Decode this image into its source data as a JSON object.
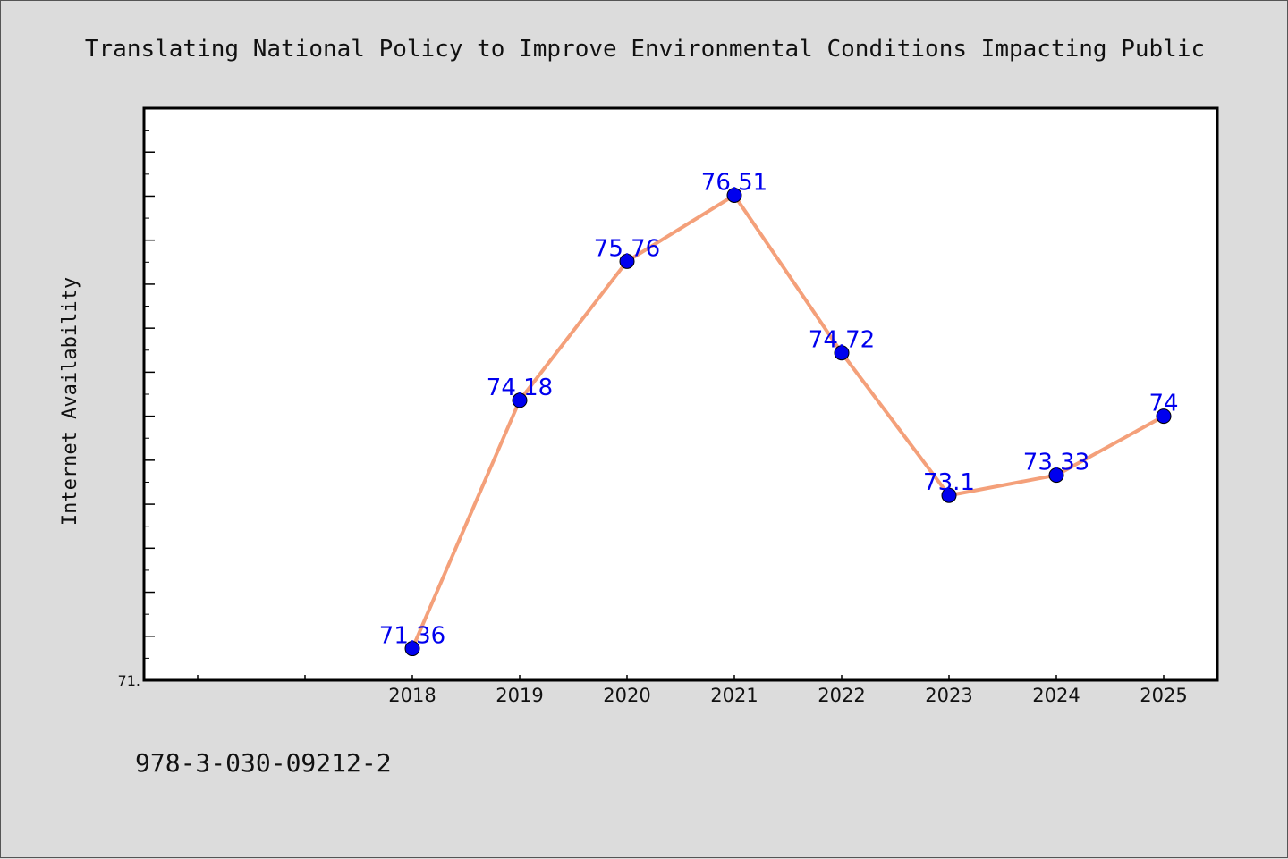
{
  "chart_data": {
    "type": "line",
    "title": "Translating National Policy to Improve Environmental Conditions Impacting Public",
    "xlabel": "",
    "ylabel": "Internet Availability",
    "x_ticks": [
      "2018",
      "2019",
      "2020",
      "2021",
      "2022",
      "2023",
      "2024",
      "2025"
    ],
    "x": [
      2018,
      2019,
      2020,
      2021,
      2022,
      2023,
      2024,
      2025
    ],
    "xlim": [
      2015.5,
      2025.5
    ],
    "ylim": [
      71,
      77.5
    ],
    "y_tick_labels": [
      {
        "value": 71,
        "label": "71."
      }
    ],
    "y_minor_step": 0.5,
    "series": [
      {
        "values": [
          71.36,
          74.18,
          75.76,
          76.51,
          74.72,
          73.1,
          73.33,
          74
        ],
        "labels": [
          "71.36",
          "74.18",
          "75.76",
          "76.51",
          "74.72",
          "73.1",
          "73.33",
          "74"
        ],
        "line_color": "#f4a07a",
        "marker_color": "#0000ee"
      }
    ],
    "grid": false,
    "legend": "none"
  },
  "footer": {
    "isbn": "978-3-030-09212-2"
  }
}
